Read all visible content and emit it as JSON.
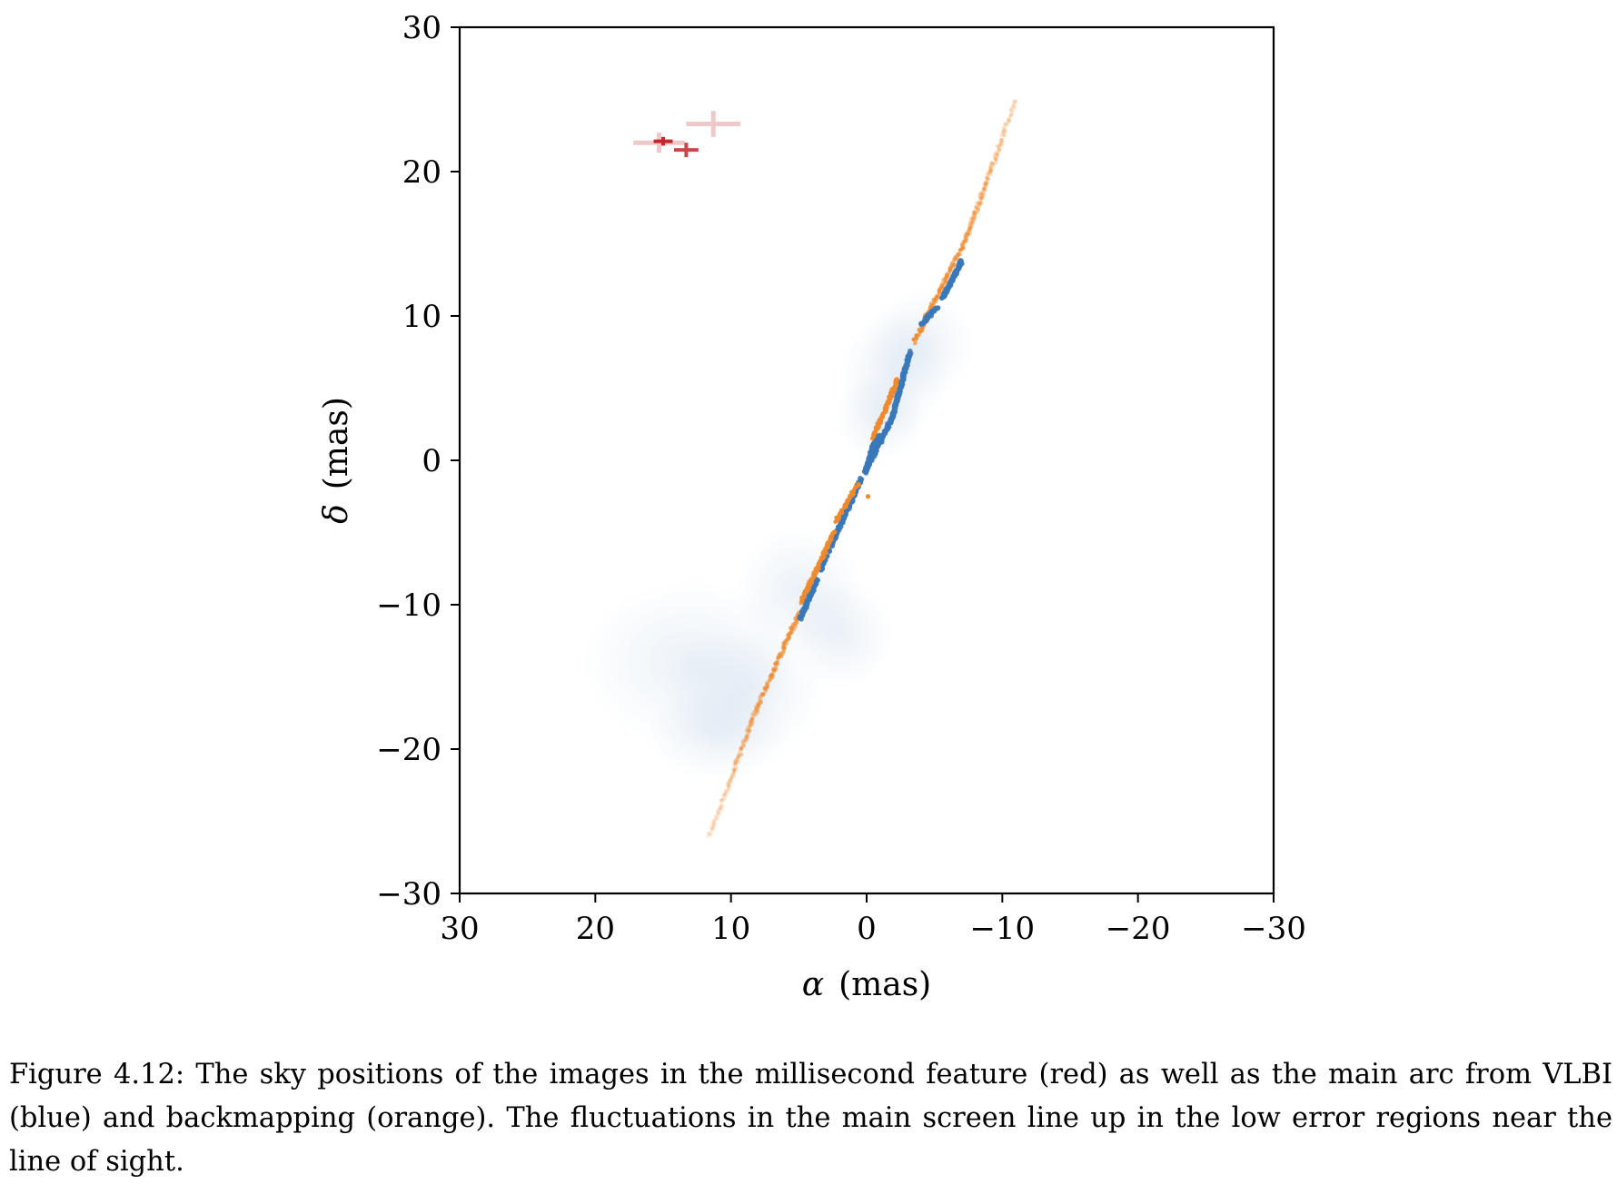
{
  "chart_data": {
    "type": "scatter",
    "title": "",
    "xlabel_symbol": "α",
    "xlabel_unit": "(mas)",
    "ylabel_symbol": "δ",
    "ylabel_unit": "(mas)",
    "xlim": [
      30,
      -30
    ],
    "ylim": [
      -30,
      30
    ],
    "x_ticks": [
      30,
      20,
      10,
      0,
      -10,
      -20,
      -30
    ],
    "y_ticks": [
      30,
      20,
      10,
      0,
      -10,
      -20,
      -30
    ],
    "x_tick_labels": [
      "30",
      "20",
      "10",
      "0",
      "−10",
      "−20",
      "−30"
    ],
    "y_tick_labels": [
      "30",
      "20",
      "10",
      "0",
      "−10",
      "−20",
      "−30"
    ],
    "grid": false,
    "series": [
      {
        "key": "red",
        "color": "#c0282d",
        "style": "errorbar",
        "points": [
          {
            "x": 15.0,
            "y": 22.1,
            "xerr": 0.7,
            "yerr": 0.3,
            "alpha": 1.0
          },
          {
            "x": 13.3,
            "y": 21.5,
            "xerr": 0.9,
            "yerr": 0.5,
            "alpha": 0.85
          },
          {
            "x": 15.3,
            "y": 22.0,
            "xerr": 1.9,
            "yerr": 0.7,
            "alpha": 0.25
          },
          {
            "x": 11.3,
            "y": 23.3,
            "xerr": 2.0,
            "yerr": 0.9,
            "alpha": 0.25
          }
        ]
      },
      {
        "key": "blue",
        "color": "#3a78b8",
        "segments": [
          {
            "from": [
              0.1,
              -0.8
            ],
            "to": [
              -1.9,
              3.0
            ]
          },
          {
            "from": [
              -1.9,
              3.0
            ],
            "to": [
              -3.2,
              7.5
            ]
          },
          {
            "from": [
              -4.0,
              9.4
            ],
            "to": [
              -5.2,
              10.6
            ]
          },
          {
            "from": [
              -5.6,
              11.2
            ],
            "to": [
              -7.0,
              13.8
            ]
          },
          {
            "from": [
              0.1,
              -0.8
            ],
            "to": [
              -0.6,
              1.3
            ]
          },
          {
            "from": [
              0.1,
              -0.8
            ],
            "to": [
              -0.9,
              1.7
            ]
          },
          {
            "from": [
              0.4,
              -1.3
            ],
            "to": [
              1.8,
              -4.2
            ]
          },
          {
            "from": [
              1.8,
              -4.2
            ],
            "to": [
              3.4,
              -7.6
            ]
          },
          {
            "from": [
              3.6,
              -8.2
            ],
            "to": [
              4.9,
              -11.0
            ]
          }
        ]
      },
      {
        "key": "orange",
        "color": "#ef8a2e",
        "segments": [
          {
            "from": [
              -0.5,
              1.6
            ],
            "to": [
              -2.3,
              5.6
            ]
          },
          {
            "from": [
              0.6,
              -1.6
            ],
            "to": [
              2.2,
              -4.2
            ]
          },
          {
            "from": [
              2.4,
              -5.0
            ],
            "to": [
              4.8,
              -9.8
            ]
          },
          {
            "from": [
              4.9,
              -10.4
            ],
            "to": [
              8.0,
              -17.0
            ]
          },
          {
            "from": [
              8.0,
              -17.0
            ],
            "to": [
              11.6,
              -26.0
            ]
          },
          {
            "from": [
              -3.5,
              8.2
            ],
            "to": [
              -7.4,
              15.5
            ]
          },
          {
            "from": [
              -7.4,
              15.5
            ],
            "to": [
              -11.0,
              25.0
            ]
          }
        ],
        "outliers": [
          [
            -0.1,
            -2.5
          ]
        ]
      }
    ]
  },
  "caption": "Figure 4.12: The sky positions of the images in the millisecond feature (red) as well as the main arc from VLBI (blue) and backmapping (orange). The fluctuations in the main screen line up in the low error regions near the line of sight."
}
